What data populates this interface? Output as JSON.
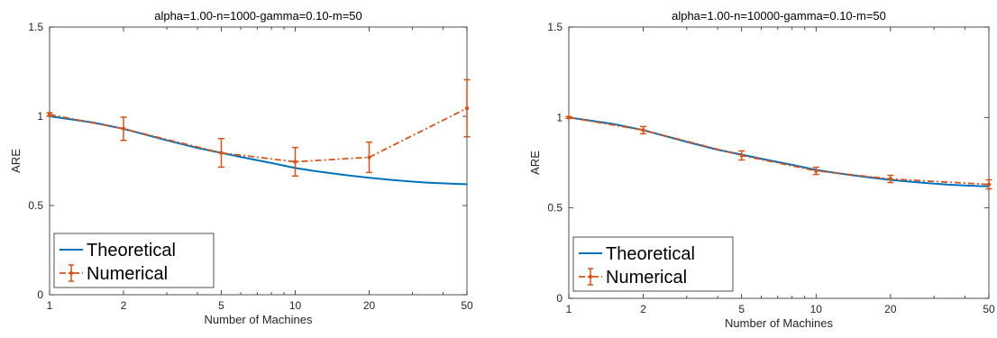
{
  "colors": {
    "theoretical": "#0072BD",
    "numerical": "#D95319",
    "axis": "#262626",
    "background": "#ffffff"
  },
  "chart_data": [
    {
      "type": "line",
      "title": "alpha=1.00-n=1000-gamma=0.10-m=50",
      "xlabel": "Number of Machines",
      "ylabel": "ARE",
      "xscale": "log",
      "xlim": [
        1,
        50
      ],
      "ylim": [
        0,
        1.5
      ],
      "xticks": [
        1,
        2,
        5,
        10,
        20,
        50
      ],
      "xtick_labels": [
        "1",
        "2",
        "5",
        "10",
        "20",
        "50"
      ],
      "yticks": [
        0,
        0.5,
        1,
        1.5
      ],
      "ytick_labels": [
        "0",
        "0.5",
        "1",
        "1.5"
      ],
      "legend": "bottom-left",
      "grid": false,
      "series": [
        {
          "name": "Theoretical",
          "style": "solid",
          "x": [
            1,
            1.5,
            2,
            3,
            4,
            5,
            6,
            8,
            10,
            12,
            15,
            20,
            25,
            30,
            35,
            40,
            45,
            50
          ],
          "y": [
            1.0,
            0.965,
            0.93,
            0.865,
            0.822,
            0.795,
            0.772,
            0.738,
            0.71,
            0.693,
            0.675,
            0.655,
            0.643,
            0.634,
            0.628,
            0.624,
            0.621,
            0.619
          ]
        },
        {
          "name": "Numerical",
          "style": "dash-dot",
          "x": [
            1,
            2,
            5,
            10,
            20,
            50
          ],
          "y": [
            1.01,
            0.93,
            0.795,
            0.745,
            0.77,
            1.045
          ],
          "error": [
            0.01,
            0.065,
            0.08,
            0.08,
            0.085,
            0.16
          ]
        }
      ]
    },
    {
      "type": "line",
      "title": "alpha=1.00-n=10000-gamma=0.10-m=50",
      "xlabel": "Number of Machines",
      "ylabel": "ARE",
      "xscale": "log",
      "xlim": [
        1,
        50
      ],
      "ylim": [
        0,
        1.5
      ],
      "xticks": [
        1,
        2,
        5,
        10,
        20,
        50
      ],
      "xtick_labels": [
        "1",
        "2",
        "5",
        "10",
        "20",
        "50"
      ],
      "yticks": [
        0,
        0.5,
        1,
        1.5
      ],
      "ytick_labels": [
        "0",
        "0.5",
        "1",
        "1.5"
      ],
      "legend": "bottom-left",
      "grid": false,
      "series": [
        {
          "name": "Theoretical",
          "style": "solid",
          "x": [
            1,
            1.5,
            2,
            3,
            4,
            5,
            6,
            8,
            10,
            12,
            15,
            20,
            25,
            30,
            35,
            40,
            45,
            50
          ],
          "y": [
            1.0,
            0.965,
            0.93,
            0.865,
            0.822,
            0.795,
            0.772,
            0.738,
            0.71,
            0.693,
            0.675,
            0.655,
            0.643,
            0.634,
            0.628,
            0.624,
            0.621,
            0.619
          ]
        },
        {
          "name": "Numerical",
          "style": "dash-dot",
          "x": [
            1,
            2,
            5,
            10,
            20,
            50
          ],
          "y": [
            1.0,
            0.93,
            0.79,
            0.705,
            0.66,
            0.63
          ],
          "error": [
            0.005,
            0.02,
            0.025,
            0.02,
            0.02,
            0.025
          ]
        }
      ]
    }
  ]
}
